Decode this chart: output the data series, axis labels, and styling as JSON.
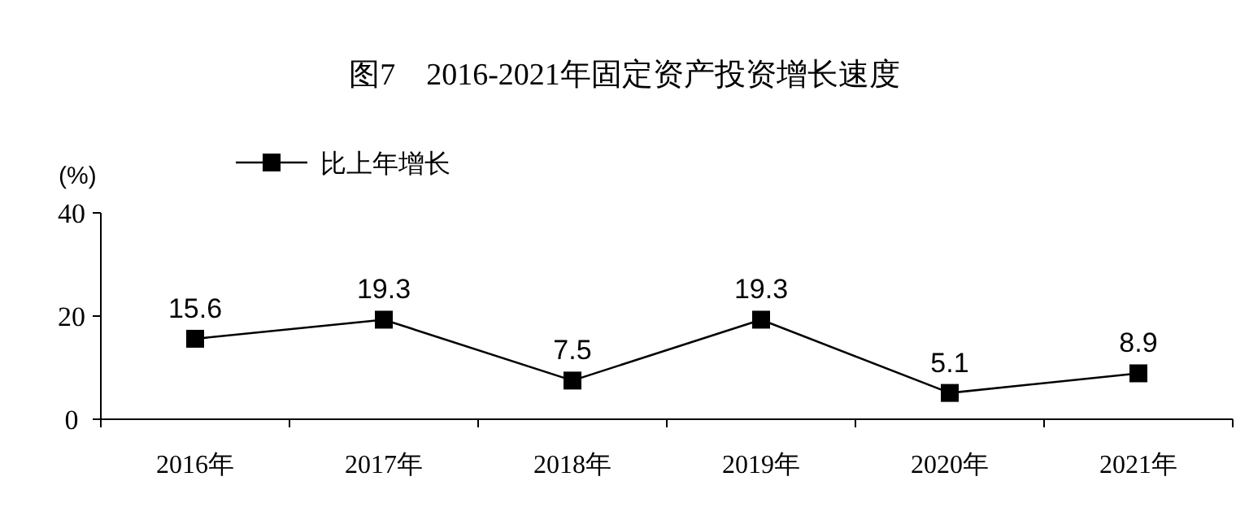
{
  "chart_data": {
    "type": "line",
    "title": "图7　2016-2021年固定资产投资增长速度",
    "ylabel": "(%)",
    "categories": [
      "2016年",
      "2017年",
      "2018年",
      "2019年",
      "2020年",
      "2021年"
    ],
    "series": [
      {
        "name": "比上年增长",
        "color": "#000000",
        "values": [
          15.6,
          19.3,
          7.5,
          19.3,
          5.1,
          8.9
        ]
      }
    ],
    "ylim": [
      0,
      40
    ],
    "yticks": [
      0,
      20,
      40
    ],
    "data_labels": true,
    "legend": "top left",
    "marker": "square",
    "line_style": "solid"
  }
}
